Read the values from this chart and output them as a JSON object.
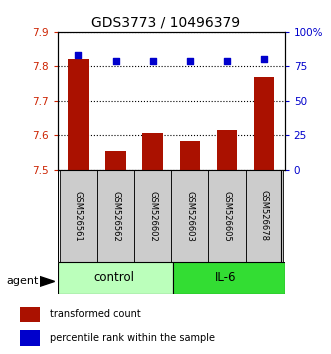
{
  "title": "GDS3773 / 10496379",
  "samples": [
    "GSM526561",
    "GSM526562",
    "GSM526602",
    "GSM526603",
    "GSM526605",
    "GSM526678"
  ],
  "bar_values": [
    7.82,
    7.555,
    7.607,
    7.585,
    7.617,
    7.77
  ],
  "dot_values": [
    83,
    79,
    79,
    79,
    79,
    80
  ],
  "ylim_left": [
    7.5,
    7.9
  ],
  "ylim_right": [
    0,
    100
  ],
  "yticks_left": [
    7.5,
    7.6,
    7.7,
    7.8,
    7.9
  ],
  "yticks_right": [
    0,
    25,
    50,
    75,
    100
  ],
  "bar_color": "#AA1100",
  "dot_color": "#0000CC",
  "bar_bottom": 7.5,
  "control_color": "#BBFFBB",
  "il6_color": "#33DD33",
  "legend_bar_label": "transformed count",
  "legend_dot_label": "percentile rank within the sample",
  "left_tick_color": "#CC2200",
  "right_tick_color": "#0000CC",
  "figsize": [
    3.31,
    3.54
  ],
  "dpi": 100
}
